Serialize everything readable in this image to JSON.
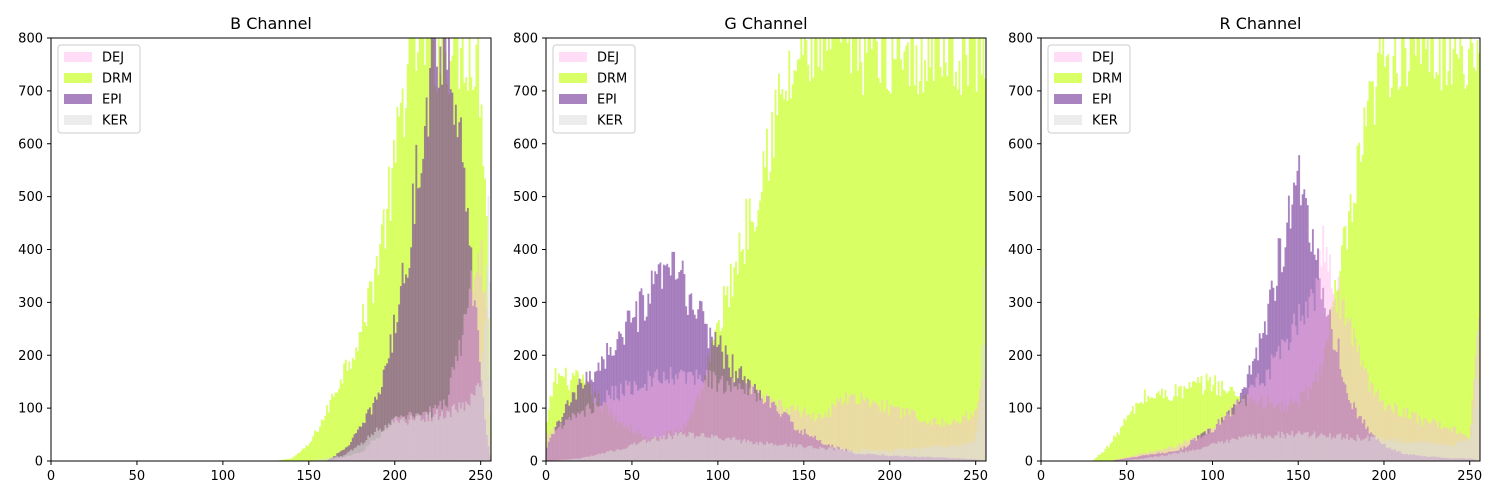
{
  "chart_data": [
    {
      "type": "histogram",
      "title": "B Channel",
      "xlim": [
        0,
        256
      ],
      "ylim": [
        0,
        800
      ],
      "xticks": [
        0,
        50,
        100,
        150,
        200,
        250
      ],
      "yticks": [
        0,
        100,
        200,
        300,
        400,
        500,
        600,
        700,
        800
      ],
      "legend": [
        "DEJ",
        "DRM",
        "EPI",
        "KER"
      ],
      "legend_position": "upper-left",
      "grid": false,
      "series": [
        {
          "name": "DRM",
          "color": "#ccff33",
          "opacity": 0.75,
          "x": [
            0,
            130,
            140,
            150,
            160,
            170,
            180,
            190,
            200,
            205,
            210,
            220,
            230,
            240,
            245,
            250,
            253,
            256
          ],
          "y": [
            0,
            0,
            5,
            30,
            90,
            170,
            240,
            380,
            550,
            700,
            800,
            800,
            800,
            800,
            800,
            720,
            550,
            0
          ]
        },
        {
          "name": "EPI",
          "color": "#7b3f9e",
          "opacity": 0.65,
          "x": [
            0,
            160,
            170,
            180,
            190,
            200,
            210,
            215,
            220,
            225,
            230,
            235,
            240,
            245,
            250,
            253,
            256
          ],
          "y": [
            0,
            0,
            20,
            60,
            120,
            250,
            450,
            600,
            720,
            800,
            800,
            720,
            520,
            350,
            180,
            60,
            0
          ]
        },
        {
          "name": "DEJ",
          "color": "#ffb3ec",
          "opacity": 0.45,
          "x": [
            0,
            160,
            180,
            190,
            200,
            210,
            220,
            230,
            240,
            245,
            250,
            253,
            256
          ],
          "y": [
            0,
            0,
            15,
            45,
            75,
            85,
            90,
            110,
            250,
            330,
            400,
            320,
            0
          ]
        },
        {
          "name": "KER",
          "color": "#dddddd",
          "opacity": 0.55,
          "x": [
            0,
            150,
            170,
            180,
            190,
            200,
            210,
            220,
            230,
            240,
            250,
            253,
            255,
            256
          ],
          "y": [
            0,
            0,
            10,
            30,
            60,
            75,
            80,
            85,
            90,
            100,
            150,
            300,
            600,
            0
          ]
        }
      ]
    },
    {
      "type": "histogram",
      "title": "G Channel",
      "xlim": [
        0,
        256
      ],
      "ylim": [
        0,
        800
      ],
      "xticks": [
        0,
        50,
        100,
        150,
        200,
        250
      ],
      "yticks": [
        0,
        100,
        200,
        300,
        400,
        500,
        600,
        700,
        800
      ],
      "legend": [
        "DEJ",
        "DRM",
        "EPI",
        "KER"
      ],
      "legend_position": "upper-left",
      "grid": false,
      "series": [
        {
          "name": "DRM",
          "color": "#ccff33",
          "opacity": 0.75,
          "x": [
            0,
            5,
            20,
            40,
            60,
            80,
            90,
            100,
            110,
            120,
            130,
            140,
            150,
            155,
            160,
            180,
            200,
            220,
            240,
            250,
            253,
            256
          ],
          "y": [
            60,
            160,
            150,
            80,
            40,
            60,
            130,
            250,
            370,
            480,
            620,
            700,
            780,
            800,
            800,
            800,
            800,
            800,
            800,
            800,
            800,
            800
          ]
        },
        {
          "name": "EPI",
          "color": "#7b3f9e",
          "opacity": 0.65,
          "x": [
            0,
            5,
            10,
            20,
            30,
            40,
            50,
            60,
            70,
            75,
            80,
            90,
            100,
            110,
            120,
            130,
            140,
            150,
            160,
            170,
            180,
            200,
            220,
            240,
            250,
            256
          ],
          "y": [
            20,
            60,
            90,
            140,
            180,
            220,
            260,
            310,
            350,
            370,
            330,
            270,
            220,
            170,
            140,
            110,
            80,
            55,
            35,
            25,
            15,
            10,
            8,
            5,
            3,
            0
          ]
        },
        {
          "name": "DEJ",
          "color": "#ffb3ec",
          "opacity": 0.45,
          "x": [
            0,
            10,
            20,
            40,
            60,
            80,
            100,
            120,
            140,
            160,
            170,
            180,
            200,
            220,
            240,
            250,
            256
          ],
          "y": [
            50,
            70,
            90,
            130,
            150,
            160,
            150,
            130,
            100,
            80,
            110,
            120,
            100,
            80,
            70,
            100,
            180
          ]
        },
        {
          "name": "KER",
          "color": "#dddddd",
          "opacity": 0.55,
          "x": [
            0,
            20,
            40,
            60,
            80,
            100,
            120,
            140,
            160,
            180,
            200,
            220,
            240,
            250,
            253,
            255,
            256
          ],
          "y": [
            0,
            5,
            20,
            40,
            50,
            45,
            35,
            30,
            25,
            20,
            20,
            25,
            30,
            40,
            120,
            420,
            0
          ]
        }
      ]
    },
    {
      "type": "histogram",
      "title": "R Channel",
      "xlim": [
        0,
        256
      ],
      "ylim": [
        0,
        800
      ],
      "xticks": [
        0,
        50,
        100,
        150,
        200,
        250
      ],
      "yticks": [
        0,
        100,
        200,
        300,
        400,
        500,
        600,
        700,
        800
      ],
      "legend": [
        "DEJ",
        "DRM",
        "EPI",
        "KER"
      ],
      "legend_position": "upper-left",
      "grid": false,
      "series": [
        {
          "name": "DRM",
          "color": "#ccff33",
          "opacity": 0.75,
          "x": [
            0,
            30,
            40,
            50,
            60,
            80,
            100,
            110,
            120,
            130,
            140,
            150,
            160,
            165,
            170,
            180,
            190,
            200,
            210,
            220,
            240,
            256
          ],
          "y": [
            0,
            0,
            30,
            80,
            120,
            130,
            150,
            130,
            120,
            110,
            100,
            110,
            150,
            200,
            280,
            450,
            620,
            780,
            800,
            800,
            800,
            800
          ]
        },
        {
          "name": "EPI",
          "color": "#7b3f9e",
          "opacity": 0.65,
          "x": [
            0,
            40,
            60,
            80,
            100,
            110,
            120,
            130,
            140,
            145,
            150,
            155,
            160,
            170,
            180,
            190,
            200,
            210,
            220,
            240,
            250,
            256
          ],
          "y": [
            0,
            0,
            10,
            20,
            60,
            90,
            150,
            250,
            400,
            450,
            520,
            480,
            400,
            250,
            120,
            60,
            30,
            15,
            10,
            5,
            5,
            0
          ]
        },
        {
          "name": "DEJ",
          "color": "#ffb3ec",
          "opacity": 0.45,
          "x": [
            0,
            40,
            60,
            80,
            100,
            120,
            140,
            150,
            160,
            165,
            170,
            180,
            190,
            200,
            220,
            240,
            250,
            256
          ],
          "y": [
            0,
            0,
            15,
            30,
            60,
            120,
            200,
            260,
            320,
            400,
            350,
            250,
            150,
            110,
            80,
            60,
            40,
            300
          ]
        },
        {
          "name": "KER",
          "color": "#dddddd",
          "opacity": 0.55,
          "x": [
            0,
            40,
            60,
            80,
            100,
            120,
            140,
            160,
            180,
            200,
            220,
            240,
            250,
            253,
            255,
            256
          ],
          "y": [
            0,
            0,
            5,
            15,
            30,
            45,
            50,
            50,
            45,
            40,
            35,
            30,
            40,
            120,
            300,
            0
          ]
        }
      ]
    }
  ]
}
